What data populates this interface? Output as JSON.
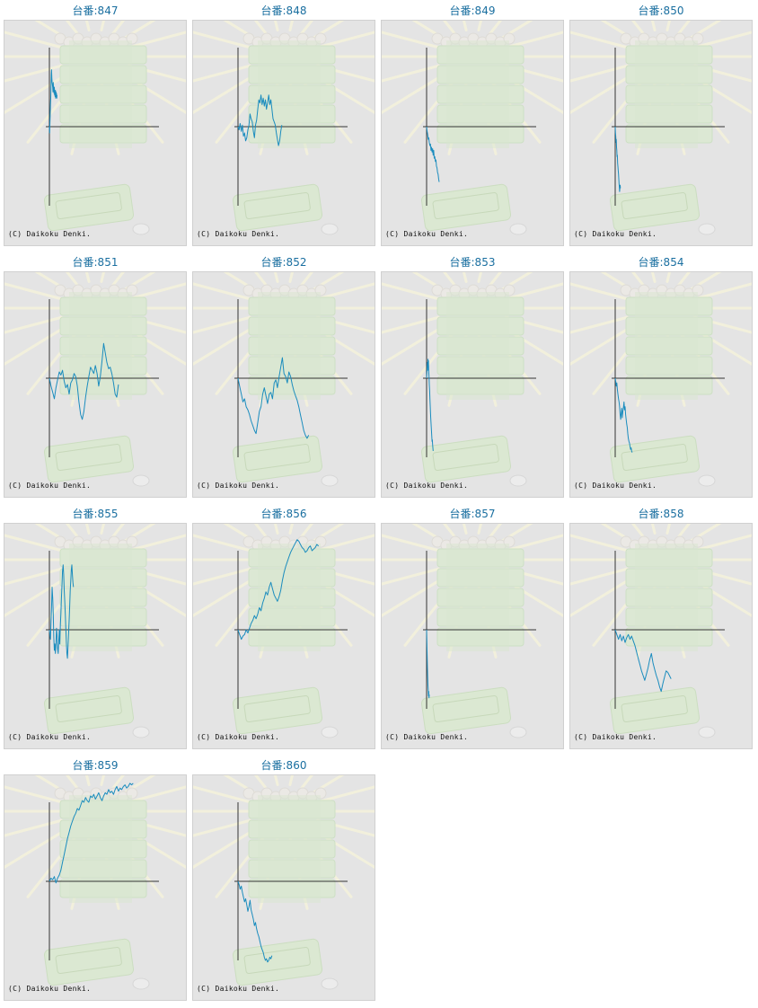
{
  "copyright": "(C) Daikoku Denki.",
  "colors": {
    "line": "#1a8cbe",
    "axis": "#333333",
    "title": "#1a6fa0",
    "panel": "#e4e4e4"
  },
  "chart_data": [
    {
      "type": "line",
      "title": "台番:847",
      "x": [
        0,
        5,
        10,
        15,
        20,
        25,
        30,
        35,
        40,
        45,
        50,
        55,
        60,
        65,
        70,
        75,
        80,
        85,
        90,
        95,
        100,
        105,
        110,
        115,
        120,
        125,
        130,
        135,
        140
      ],
      "y": [
        0,
        -0.08,
        0.06,
        0.16,
        0.28,
        0.36,
        0.52,
        0.66,
        0.72,
        0.62,
        0.56,
        0.52,
        0.5,
        0.44,
        0.56,
        0.48,
        0.46,
        0.42,
        0.5,
        0.4,
        0.42,
        0.38,
        0.46,
        0.36,
        0.44,
        0.38,
        0.42,
        0.36,
        0.4
      ]
    },
    {
      "type": "line",
      "title": "台番:848",
      "x": [
        0,
        20,
        40,
        60,
        80,
        100,
        120,
        140,
        160,
        180,
        200,
        220,
        240,
        260,
        280,
        300,
        320,
        340,
        360,
        380,
        400,
        420,
        440,
        460,
        480,
        500,
        520,
        540,
        560,
        580,
        600,
        620,
        640,
        660,
        680,
        700,
        720,
        740,
        760,
        780,
        800
      ],
      "y": [
        0,
        -0.04,
        0.04,
        -0.06,
        0.02,
        -0.12,
        -0.08,
        -0.18,
        -0.14,
        -0.04,
        0.02,
        0.16,
        0.1,
        0.06,
        -0.06,
        -0.14,
        0.02,
        0.08,
        0.22,
        0.34,
        0.3,
        0.4,
        0.28,
        0.36,
        0.26,
        0.34,
        0.22,
        0.3,
        0.4,
        0.28,
        0.34,
        0.22,
        0.1,
        0.06,
        0.02,
        -0.08,
        -0.16,
        -0.24,
        -0.18,
        -0.06,
        0.02
      ]
    },
    {
      "type": "line",
      "title": "台番:849",
      "x": [
        0,
        10,
        20,
        30,
        40,
        50,
        60,
        70,
        80,
        90,
        100,
        110,
        120,
        130,
        140,
        150,
        160,
        170,
        180,
        190,
        200,
        210,
        220,
        230
      ],
      "y": [
        0,
        -0.06,
        -0.1,
        -0.16,
        -0.14,
        -0.2,
        -0.24,
        -0.22,
        -0.3,
        -0.26,
        -0.32,
        -0.28,
        -0.36,
        -0.3,
        -0.4,
        -0.38,
        -0.44,
        -0.42,
        -0.5,
        -0.52,
        -0.58,
        -0.6,
        -0.66,
        -0.7
      ]
    },
    {
      "type": "line",
      "title": "台番:850",
      "x": [
        0,
        5,
        10,
        15,
        20,
        25,
        30,
        35,
        40,
        45,
        50,
        55,
        60,
        65,
        70,
        75,
        80,
        85,
        90,
        95
      ],
      "y": [
        0,
        -0.08,
        -0.12,
        -0.2,
        -0.16,
        -0.26,
        -0.3,
        -0.38,
        -0.36,
        -0.46,
        -0.5,
        -0.56,
        -0.6,
        -0.66,
        -0.72,
        -0.76,
        -0.82,
        -0.78,
        -0.74,
        -0.78
      ]
    },
    {
      "type": "line",
      "title": "台番:851",
      "x": [
        0,
        30,
        60,
        90,
        120,
        150,
        180,
        210,
        240,
        270,
        300,
        330,
        360,
        390,
        420,
        450,
        480,
        510,
        540,
        570,
        600,
        630,
        660,
        690,
        720,
        750,
        780,
        810,
        840,
        870,
        900,
        930,
        960,
        990,
        1020,
        1050,
        1080,
        1110,
        1140,
        1170,
        1200,
        1230,
        1260
      ],
      "y": [
        0,
        -0.1,
        -0.18,
        -0.26,
        -0.12,
        -0.02,
        0.08,
        0.04,
        0.1,
        -0.04,
        -0.12,
        -0.08,
        -0.2,
        -0.06,
        -0.02,
        0.06,
        0.02,
        -0.1,
        -0.3,
        -0.46,
        -0.52,
        -0.42,
        -0.24,
        -0.1,
        0.02,
        0.14,
        0.1,
        0.06,
        0.16,
        0.06,
        -0.1,
        0.02,
        0.22,
        0.44,
        0.32,
        0.2,
        0.12,
        0.14,
        0.06,
        -0.06,
        -0.2,
        -0.24,
        -0.08
      ]
    },
    {
      "type": "line",
      "title": "台番:852",
      "x": [
        0,
        30,
        60,
        90,
        120,
        150,
        180,
        210,
        240,
        270,
        300,
        330,
        360,
        390,
        420,
        450,
        480,
        510,
        540,
        570,
        600,
        630,
        660,
        690,
        720,
        750,
        780,
        810,
        840,
        870,
        900,
        930,
        960,
        990,
        1020,
        1050,
        1080,
        1110,
        1140,
        1170,
        1200,
        1230,
        1260,
        1290
      ],
      "y": [
        0,
        -0.1,
        -0.2,
        -0.3,
        -0.26,
        -0.36,
        -0.4,
        -0.46,
        -0.54,
        -0.6,
        -0.66,
        -0.7,
        -0.56,
        -0.42,
        -0.36,
        -0.2,
        -0.12,
        -0.22,
        -0.32,
        -0.2,
        -0.18,
        -0.26,
        -0.06,
        -0.02,
        -0.12,
        0.02,
        0.14,
        0.26,
        0.06,
        0.02,
        -0.06,
        0.08,
        0.02,
        -0.08,
        -0.16,
        -0.22,
        -0.28,
        -0.36,
        -0.46,
        -0.56,
        -0.66,
        -0.72,
        -0.76,
        -0.72
      ]
    },
    {
      "type": "line",
      "title": "台番:853",
      "x": [
        0,
        5,
        10,
        15,
        20,
        25,
        30,
        35,
        40,
        45,
        50,
        55,
        60,
        65,
        70,
        75,
        80,
        85,
        90,
        95,
        100,
        105,
        110,
        115,
        120
      ],
      "y": [
        0,
        0.06,
        0.14,
        0.2,
        0.1,
        0.24,
        0.16,
        0.22,
        0.08,
        0.02,
        -0.08,
        -0.16,
        -0.26,
        -0.34,
        -0.42,
        -0.5,
        -0.56,
        -0.62,
        -0.68,
        -0.74,
        -0.8,
        -0.78,
        -0.84,
        -0.88,
        -0.92
      ]
    },
    {
      "type": "line",
      "title": "台番:854",
      "x": [
        0,
        10,
        20,
        30,
        40,
        50,
        60,
        70,
        80,
        90,
        100,
        110,
        120,
        130,
        140,
        150,
        160,
        170,
        180,
        190,
        200,
        210,
        220,
        230,
        240,
        250,
        260,
        270,
        280,
        290,
        300,
        310
      ],
      "y": [
        0,
        -0.04,
        -0.1,
        -0.06,
        -0.14,
        -0.2,
        -0.26,
        -0.3,
        -0.36,
        -0.46,
        -0.52,
        -0.44,
        -0.38,
        -0.5,
        -0.42,
        -0.38,
        -0.3,
        -0.4,
        -0.36,
        -0.46,
        -0.52,
        -0.58,
        -0.62,
        -0.7,
        -0.76,
        -0.8,
        -0.82,
        -0.86,
        -0.9,
        -0.88,
        -0.92,
        -0.94
      ]
    },
    {
      "type": "line",
      "title": "台番:855",
      "x": [
        0,
        10,
        20,
        30,
        40,
        50,
        60,
        70,
        80,
        90,
        100,
        110,
        120,
        130,
        140,
        150,
        160,
        170,
        180,
        190,
        200,
        210,
        220,
        230,
        240,
        250,
        260,
        270,
        280,
        290,
        300,
        310,
        320,
        330,
        340,
        350,
        360,
        370,
        380,
        390,
        400,
        410,
        420,
        430,
        440
      ],
      "y": [
        0,
        -0.06,
        -0.12,
        0.1,
        0.28,
        0.54,
        0.4,
        0.2,
        -0.1,
        -0.26,
        -0.18,
        -0.3,
        -0.18,
        0.02,
        -0.06,
        -0.24,
        -0.3,
        -0.14,
        0,
        -0.18,
        0.06,
        0.2,
        0.4,
        0.56,
        0.74,
        0.82,
        0.7,
        0.5,
        0.36,
        0.2,
        0.02,
        -0.16,
        -0.3,
        -0.36,
        -0.22,
        -0.06,
        0.12,
        0.3,
        0.5,
        0.62,
        0.76,
        0.82,
        0.7,
        0.6,
        0.54
      ]
    },
    {
      "type": "line",
      "title": "台番:856",
      "x": [
        0,
        30,
        60,
        90,
        120,
        150,
        180,
        210,
        240,
        270,
        300,
        330,
        360,
        390,
        420,
        450,
        480,
        510,
        540,
        570,
        600,
        630,
        660,
        690,
        720,
        750,
        780,
        810,
        840,
        870,
        900,
        930,
        960,
        990,
        1020,
        1050,
        1080,
        1110,
        1140,
        1170,
        1200,
        1230,
        1260,
        1290,
        1320,
        1350,
        1380,
        1410,
        1440,
        1470
      ],
      "y": [
        0,
        -0.06,
        -0.12,
        -0.08,
        -0.06,
        0.0,
        -0.04,
        0.02,
        0.08,
        0.12,
        0.18,
        0.14,
        0.2,
        0.28,
        0.24,
        0.34,
        0.4,
        0.48,
        0.44,
        0.54,
        0.6,
        0.52,
        0.44,
        0.4,
        0.36,
        0.42,
        0.5,
        0.62,
        0.72,
        0.8,
        0.86,
        0.92,
        0.98,
        1.02,
        1.06,
        1.1,
        1.14,
        1.12,
        1.08,
        1.04,
        1.02,
        0.98,
        1.0,
        1.04,
        1.06,
        1.0,
        1.02,
        1.04,
        1.08,
        1.06
      ]
    },
    {
      "type": "line",
      "title": "台番:857",
      "x": [
        0,
        5,
        10,
        15,
        20,
        25,
        30,
        35,
        40,
        45,
        50
      ],
      "y": [
        0,
        -0.16,
        -0.32,
        -0.48,
        -0.6,
        -0.7,
        -0.76,
        -0.84,
        -0.78,
        -0.86,
        -0.82
      ]
    },
    {
      "type": "line",
      "title": "台番:858",
      "x": [
        0,
        30,
        60,
        90,
        120,
        150,
        180,
        210,
        240,
        270,
        300,
        330,
        360,
        390,
        420,
        450,
        480,
        510,
        540,
        570,
        600,
        630,
        660,
        690,
        720,
        750,
        780,
        810,
        840,
        870,
        900,
        930,
        960,
        990,
        1020
      ],
      "y": [
        0,
        -0.06,
        -0.12,
        -0.06,
        -0.14,
        -0.08,
        -0.16,
        -0.1,
        -0.06,
        -0.12,
        -0.08,
        -0.14,
        -0.2,
        -0.28,
        -0.36,
        -0.44,
        -0.52,
        -0.58,
        -0.64,
        -0.56,
        -0.48,
        -0.38,
        -0.3,
        -0.42,
        -0.5,
        -0.58,
        -0.64,
        -0.72,
        -0.78,
        -0.68,
        -0.6,
        -0.52,
        -0.54,
        -0.58,
        -0.62
      ]
    },
    {
      "type": "line",
      "title": "台番:859",
      "x": [
        0,
        30,
        60,
        90,
        120,
        150,
        180,
        210,
        240,
        270,
        300,
        330,
        360,
        390,
        420,
        450,
        480,
        510,
        540,
        570,
        600,
        630,
        660,
        690,
        720,
        750,
        780,
        810,
        840,
        870,
        900,
        930,
        960,
        990,
        1020,
        1050,
        1080,
        1110,
        1140,
        1170,
        1200,
        1230,
        1260,
        1290,
        1320,
        1350,
        1380,
        1410,
        1440,
        1470,
        1500,
        1530
      ],
      "y": [
        0,
        0.04,
        0.02,
        0.06,
        -0.02,
        0.04,
        0.08,
        0.14,
        0.24,
        0.34,
        0.44,
        0.54,
        0.62,
        0.7,
        0.76,
        0.82,
        0.86,
        0.92,
        0.9,
        0.96,
        1.02,
        1.0,
        1.06,
        1.02,
        1.0,
        1.08,
        1.06,
        1.1,
        1.04,
        1.08,
        1.12,
        1.06,
        1.02,
        1.08,
        1.12,
        1.1,
        1.16,
        1.12,
        1.14,
        1.1,
        1.16,
        1.2,
        1.14,
        1.18,
        1.16,
        1.2,
        1.22,
        1.18,
        1.2,
        1.24,
        1.22,
        1.24
      ]
    },
    {
      "type": "line",
      "title": "台番:860",
      "x": [
        0,
        20,
        40,
        60,
        80,
        100,
        120,
        140,
        160,
        180,
        200,
        220,
        240,
        260,
        280,
        300,
        320,
        340,
        360,
        380,
        400,
        420,
        440,
        460,
        480,
        500,
        520,
        540,
        560,
        580,
        600,
        620
      ],
      "y": [
        0,
        -0.04,
        -0.1,
        -0.06,
        -0.14,
        -0.2,
        -0.26,
        -0.22,
        -0.3,
        -0.38,
        -0.32,
        -0.24,
        -0.36,
        -0.42,
        -0.48,
        -0.56,
        -0.52,
        -0.6,
        -0.66,
        -0.7,
        -0.76,
        -0.82,
        -0.86,
        -0.9,
        -0.96,
        -1.0,
        -0.98,
        -1.02,
        -1.0,
        -0.96,
        -0.98,
        -0.94
      ]
    }
  ]
}
